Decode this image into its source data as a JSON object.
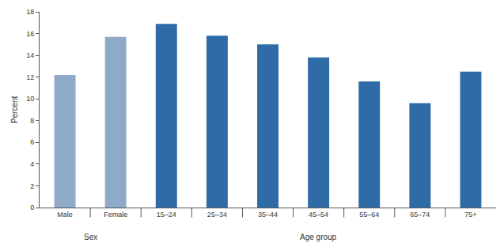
{
  "chart_data": {
    "type": "bar",
    "categories": [
      "Male",
      "Female",
      "15–24",
      "25–34",
      "35–44",
      "45–54",
      "55–64",
      "65–74",
      "75+"
    ],
    "values": [
      12.2,
      15.7,
      16.9,
      15.8,
      15.0,
      13.8,
      11.6,
      9.6,
      12.5
    ],
    "colors": [
      "#8fa9c9",
      "#8fa9c9",
      "#2e6ba7",
      "#2e6ba7",
      "#2e6ba7",
      "#2e6ba7",
      "#2e6ba7",
      "#2e6ba7",
      "#2e6ba7"
    ],
    "y_label": "Percent",
    "ylim": [
      0,
      18
    ],
    "yticks": [
      0,
      2,
      4,
      6,
      8,
      10,
      12,
      14,
      16,
      18
    ],
    "grid": false,
    "x_groups": [
      {
        "label": "Sex",
        "categories": [
          "Male",
          "Female"
        ]
      },
      {
        "label": "Age group",
        "categories": [
          "15–24",
          "25–34",
          "35–44",
          "45–54",
          "55–64",
          "65–74",
          "75+"
        ]
      }
    ]
  }
}
